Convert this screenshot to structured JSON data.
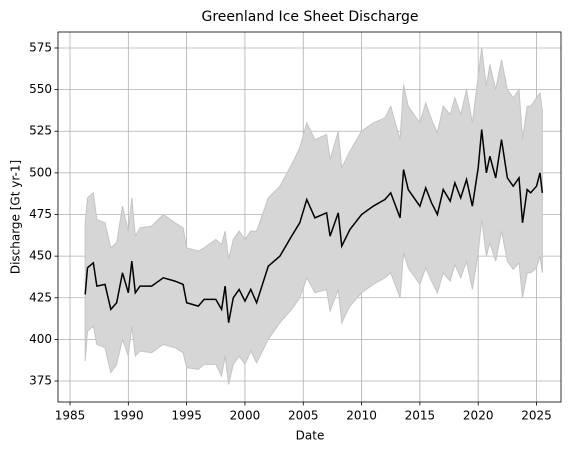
{
  "chart_data": {
    "type": "line",
    "title": "Greenland Ice Sheet Discharge",
    "xlabel": "Date",
    "ylabel": "Discharge [Gt yr-1]",
    "x": [
      1986.3,
      1986.5,
      1987.0,
      1987.3,
      1988.0,
      1988.5,
      1989.0,
      1989.5,
      1990.0,
      1990.3,
      1990.6,
      1991.0,
      1992.0,
      1993.0,
      1994.0,
      1994.7,
      1995.0,
      1996.0,
      1996.5,
      1997.5,
      1998.0,
      1998.3,
      1998.6,
      1999.0,
      1999.5,
      2000.0,
      2000.5,
      2001.0,
      2002.0,
      2003.0,
      2004.0,
      2004.7,
      2005.3,
      2006.0,
      2007.0,
      2007.3,
      2008.0,
      2008.3,
      2009.0,
      2010.0,
      2011.0,
      2012.0,
      2012.5,
      2013.3,
      2013.6,
      2014.0,
      2015.0,
      2015.5,
      2016.0,
      2016.5,
      2017.0,
      2017.6,
      2018.0,
      2018.5,
      2019.0,
      2019.5,
      2020.0,
      2020.3,
      2020.7,
      2021.0,
      2021.5,
      2022.0,
      2022.5,
      2023.0,
      2023.5,
      2023.8,
      2024.2,
      2024.5,
      2025.0,
      2025.3,
      2025.5
    ],
    "values": [
      427,
      443,
      446,
      432,
      433,
      418,
      422,
      440,
      428,
      447,
      428,
      432,
      432,
      437,
      435,
      433,
      422,
      420,
      424,
      424,
      418,
      432,
      410,
      425,
      430,
      423,
      430,
      422,
      444,
      450,
      462,
      470,
      484,
      473,
      476,
      462,
      476,
      456,
      466,
      475,
      480,
      484,
      488,
      473,
      502,
      490,
      480,
      491,
      482,
      475,
      490,
      483,
      494,
      485,
      496,
      480,
      503,
      526,
      500,
      510,
      497,
      520,
      497,
      492,
      497,
      470,
      490,
      488,
      492,
      500,
      488
    ],
    "band_lower": [
      387,
      405,
      408,
      397,
      395,
      380,
      385,
      400,
      390,
      408,
      390,
      393,
      392,
      397,
      395,
      392,
      383,
      382,
      385,
      385,
      378,
      390,
      373,
      385,
      390,
      385,
      393,
      386,
      400,
      410,
      418,
      425,
      437,
      428,
      430,
      417,
      430,
      410,
      420,
      428,
      433,
      437,
      440,
      425,
      452,
      443,
      433,
      443,
      435,
      428,
      440,
      435,
      445,
      437,
      447,
      430,
      452,
      472,
      450,
      458,
      447,
      465,
      447,
      442,
      446,
      425,
      440,
      440,
      443,
      450,
      440
    ],
    "band_upper": [
      470,
      485,
      488,
      472,
      470,
      455,
      458,
      480,
      465,
      485,
      462,
      467,
      468,
      475,
      470,
      467,
      455,
      453,
      455,
      460,
      457,
      465,
      448,
      460,
      465,
      460,
      465,
      465,
      485,
      492,
      505,
      515,
      530,
      520,
      523,
      508,
      525,
      503,
      513,
      525,
      530,
      533,
      540,
      520,
      553,
      540,
      530,
      542,
      532,
      524,
      540,
      535,
      545,
      535,
      550,
      530,
      558,
      575,
      552,
      565,
      550,
      568,
      550,
      545,
      550,
      520,
      540,
      540,
      545,
      548,
      537
    ],
    "color": "#000000",
    "band_color": "#d6d6d6",
    "band_edge_color": "#c4c4c4",
    "xlim": [
      1983.97,
      2027.1
    ],
    "ylim": [
      362.4,
      584.6
    ],
    "xticks": [
      1985,
      1990,
      1995,
      2000,
      2005,
      2010,
      2015,
      2020,
      2025
    ],
    "yticks": [
      375,
      400,
      425,
      450,
      475,
      500,
      525,
      550,
      575
    ],
    "grid": true
  }
}
